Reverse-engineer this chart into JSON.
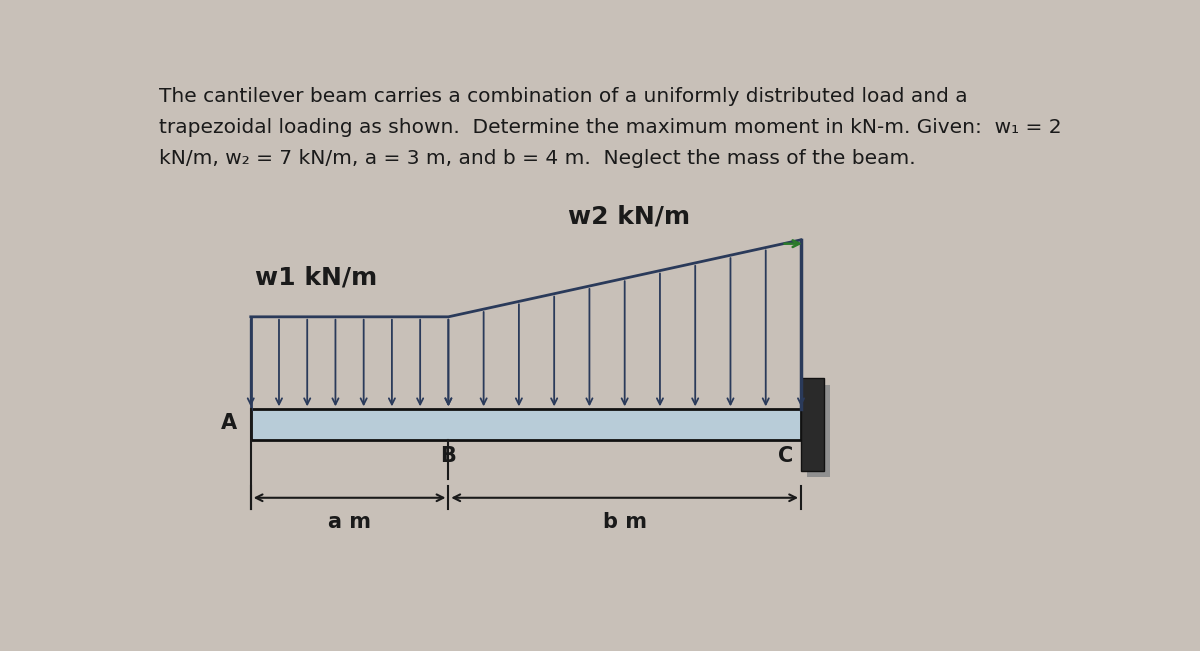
{
  "bg_color": "#c8c0b8",
  "text_color": "#1a1a1a",
  "arrow_color": "#2a3a5a",
  "beam_color": "#b8ccd8",
  "beam_outline": "#111111",
  "wall_color": "#3a3a3a",
  "wall_shadow": "#8a8a8a",
  "title_line1": "The cantilever beam carries a combination of a uniformly distributed load and a",
  "title_line2": "trapezoidal loading as shown.  Determine the maximum moment in kN-m. Given:  w₁ = 2",
  "title_line3": "kN/m, w₂ = 7 kN/m, a = 3 m, and b = 4 m.  Neglect the mass of the beam.",
  "label_w1": "w1 kN/m",
  "label_w2": "w2 kN/m",
  "label_A": "A",
  "label_B": "B",
  "label_C": "C",
  "label_a": "a m",
  "label_b": "b m"
}
